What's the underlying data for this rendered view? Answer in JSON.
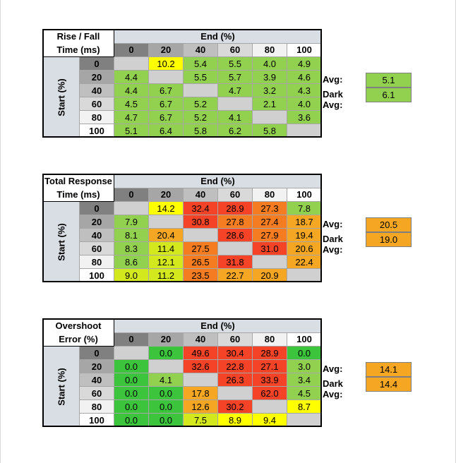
{
  "colors": {
    "green": "#92d050",
    "lime": "#d4e81e",
    "yellow": "#ffff00",
    "orange": "#f5a623",
    "dark_orange": "#f57c20",
    "red": "#f44326",
    "bright_green": "#3cc43c",
    "gray": "#d0d0d0"
  },
  "tables": [
    {
      "title_line1": "Rise / Fall",
      "title_line2": "Time (ms)",
      "end_label": "End (%)",
      "start_label": "Start (%)",
      "columns": [
        "0",
        "20",
        "40",
        "60",
        "80",
        "100"
      ],
      "rows": [
        {
          "label": "0",
          "cells": [
            "",
            "10.2",
            "5.4",
            "5.5",
            "4.0",
            "4.9"
          ],
          "colors": [
            "gray",
            "yellow",
            "green",
            "green",
            "green",
            "green"
          ]
        },
        {
          "label": "20",
          "cells": [
            "4.4",
            "",
            "5.5",
            "5.7",
            "3.9",
            "4.6"
          ],
          "colors": [
            "green",
            "gray",
            "green",
            "green",
            "green",
            "green"
          ]
        },
        {
          "label": "40",
          "cells": [
            "4.4",
            "6.7",
            "",
            "4.7",
            "3.2",
            "4.3"
          ],
          "colors": [
            "green",
            "green",
            "gray",
            "green",
            "green",
            "green"
          ]
        },
        {
          "label": "60",
          "cells": [
            "4.5",
            "6.7",
            "5.2",
            "",
            "2.1",
            "4.0"
          ],
          "colors": [
            "green",
            "green",
            "green",
            "gray",
            "green",
            "green"
          ]
        },
        {
          "label": "80",
          "cells": [
            "4.7",
            "6.7",
            "5.2",
            "4.1",
            "",
            "3.6"
          ],
          "colors": [
            "green",
            "green",
            "green",
            "green",
            "gray",
            "green"
          ]
        },
        {
          "label": "100",
          "cells": [
            "5.1",
            "6.4",
            "5.8",
            "6.2",
            "5.8",
            ""
          ],
          "colors": [
            "green",
            "green",
            "green",
            "green",
            "green",
            "gray"
          ]
        }
      ],
      "avg_label": "Avg:",
      "avg_value": "5.1",
      "dark_avg_label": "Dark Avg:",
      "dark_avg_value": "6.1",
      "avg_color": "green"
    },
    {
      "title_line1": "Total Response",
      "title_line2": "Time (ms)",
      "end_label": "End (%)",
      "start_label": "Start (%)",
      "columns": [
        "0",
        "20",
        "40",
        "60",
        "80",
        "100"
      ],
      "rows": [
        {
          "label": "0",
          "cells": [
            "",
            "14.2",
            "32.4",
            "28.9",
            "27.3",
            "7.8"
          ],
          "colors": [
            "gray",
            "yellow",
            "red",
            "red",
            "dark_orange",
            "green"
          ]
        },
        {
          "label": "20",
          "cells": [
            "7.9",
            "",
            "30.8",
            "27.8",
            "27.4",
            "18.7"
          ],
          "colors": [
            "green",
            "gray",
            "red",
            "dark_orange",
            "dark_orange",
            "orange"
          ]
        },
        {
          "label": "40",
          "cells": [
            "8.1",
            "20.4",
            "",
            "28.6",
            "27.9",
            "19.4"
          ],
          "colors": [
            "green",
            "orange",
            "gray",
            "red",
            "dark_orange",
            "orange"
          ]
        },
        {
          "label": "60",
          "cells": [
            "8.3",
            "11.4",
            "27.5",
            "",
            "31.0",
            "20.6"
          ],
          "colors": [
            "green",
            "lime",
            "dark_orange",
            "gray",
            "red",
            "orange"
          ]
        },
        {
          "label": "80",
          "cells": [
            "8.6",
            "12.1",
            "26.5",
            "31.8",
            "",
            "22.4"
          ],
          "colors": [
            "green",
            "lime",
            "dark_orange",
            "red",
            "gray",
            "orange"
          ]
        },
        {
          "label": "100",
          "cells": [
            "9.0",
            "11.2",
            "23.5",
            "22.7",
            "20.9",
            ""
          ],
          "colors": [
            "lime",
            "lime",
            "dark_orange",
            "orange",
            "orange",
            "gray"
          ]
        }
      ],
      "avg_label": "Avg:",
      "avg_value": "20.5",
      "dark_avg_label": "Dark Avg:",
      "dark_avg_value": "19.0",
      "avg_color": "orange"
    },
    {
      "title_line1": "Overshoot",
      "title_line2": "Error (%)",
      "end_label": "End (%)",
      "start_label": "Start (%)",
      "columns": [
        "0",
        "20",
        "40",
        "60",
        "80",
        "100"
      ],
      "rows": [
        {
          "label": "0",
          "cells": [
            "",
            "0.0",
            "49.6",
            "30.4",
            "28.9",
            "0.0"
          ],
          "colors": [
            "gray",
            "bright_green",
            "red",
            "red",
            "red",
            "bright_green"
          ]
        },
        {
          "label": "20",
          "cells": [
            "0.0",
            "",
            "32.6",
            "22.8",
            "27.1",
            "3.0"
          ],
          "colors": [
            "bright_green",
            "gray",
            "red",
            "red",
            "red",
            "green"
          ]
        },
        {
          "label": "40",
          "cells": [
            "0.0",
            "4.1",
            "",
            "26.3",
            "33.9",
            "3.4"
          ],
          "colors": [
            "bright_green",
            "green",
            "gray",
            "red",
            "red",
            "green"
          ]
        },
        {
          "label": "60",
          "cells": [
            "0.0",
            "0.0",
            "17.8",
            "",
            "62.0",
            "4.5"
          ],
          "colors": [
            "bright_green",
            "bright_green",
            "orange",
            "gray",
            "red",
            "green"
          ]
        },
        {
          "label": "80",
          "cells": [
            "0.0",
            "0.0",
            "12.6",
            "30.2",
            "",
            "8.7"
          ],
          "colors": [
            "bright_green",
            "bright_green",
            "orange",
            "red",
            "gray",
            "yellow"
          ]
        },
        {
          "label": "100",
          "cells": [
            "0.0",
            "0.0",
            "7.5",
            "8.9",
            "9.4",
            ""
          ],
          "colors": [
            "bright_green",
            "bright_green",
            "lime",
            "yellow",
            "yellow",
            "gray"
          ]
        }
      ],
      "avg_label": "Avg:",
      "avg_value": "14.1",
      "dark_avg_label": "Dark Avg:",
      "dark_avg_value": "14.4",
      "avg_color": "orange"
    }
  ]
}
